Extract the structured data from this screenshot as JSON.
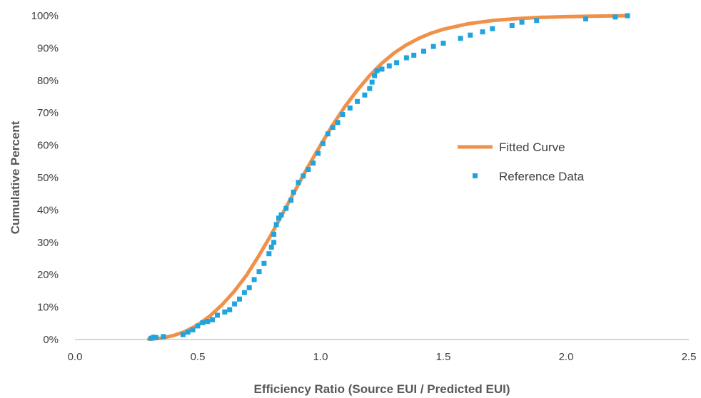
{
  "chart_data": {
    "type": "scatter",
    "xlabel": "Efficiency Ratio (Source EUI / Predicted EUI)",
    "ylabel": "Cumulative Percent",
    "xlim": [
      0,
      2.5
    ],
    "ylim": [
      0,
      100
    ],
    "x_ticks": [
      "0.0",
      "0.5",
      "1.0",
      "1.5",
      "2.0",
      "2.5"
    ],
    "y_ticks": [
      "0%",
      "10%",
      "20%",
      "30%",
      "40%",
      "50%",
      "60%",
      "70%",
      "80%",
      "90%",
      "100%"
    ],
    "legend": {
      "position": "right-center"
    },
    "colors": {
      "fitted": "#F0914A",
      "reference": "#1EA4DE"
    },
    "series": [
      {
        "name": "Fitted Curve",
        "style": "line",
        "x": [
          0.3,
          0.35,
          0.4,
          0.45,
          0.5,
          0.55,
          0.6,
          0.65,
          0.7,
          0.75,
          0.8,
          0.85,
          0.9,
          0.95,
          1.0,
          1.05,
          1.1,
          1.15,
          1.2,
          1.25,
          1.3,
          1.35,
          1.4,
          1.45,
          1.5,
          1.6,
          1.7,
          1.8,
          1.9,
          2.0,
          2.1,
          2.2,
          2.25
        ],
        "y": [
          0.1,
          0.4,
          1.2,
          2.5,
          4.5,
          7.3,
          10.8,
          15.0,
          20.0,
          26.0,
          32.5,
          39.5,
          46.5,
          53.5,
          60.0,
          66.3,
          72.0,
          77.0,
          81.5,
          85.3,
          88.5,
          91.0,
          93.0,
          94.6,
          95.8,
          97.5,
          98.5,
          99.1,
          99.5,
          99.7,
          99.85,
          99.95,
          100
        ]
      },
      {
        "name": "Reference Data",
        "style": "markers",
        "x": [
          0.31,
          0.32,
          0.33,
          0.36,
          0.44,
          0.46,
          0.48,
          0.5,
          0.52,
          0.54,
          0.56,
          0.58,
          0.61,
          0.63,
          0.65,
          0.67,
          0.69,
          0.71,
          0.73,
          0.75,
          0.77,
          0.79,
          0.8,
          0.81,
          0.81,
          0.82,
          0.83,
          0.84,
          0.86,
          0.88,
          0.89,
          0.91,
          0.93,
          0.95,
          0.97,
          0.99,
          1.01,
          1.03,
          1.05,
          1.07,
          1.09,
          1.12,
          1.15,
          1.18,
          1.2,
          1.21,
          1.22,
          1.23,
          1.25,
          1.28,
          1.31,
          1.35,
          1.38,
          1.42,
          1.46,
          1.5,
          1.57,
          1.61,
          1.66,
          1.7,
          1.78,
          1.82,
          1.88,
          2.08,
          2.2,
          2.25
        ],
        "y": [
          0.4,
          0.7,
          0.6,
          0.9,
          1.5,
          2.3,
          3.0,
          4.2,
          5.2,
          5.6,
          6.1,
          7.5,
          8.5,
          9.2,
          11.0,
          12.5,
          14.5,
          16.0,
          18.5,
          21.0,
          23.5,
          26.5,
          28.5,
          30.0,
          32.5,
          35.5,
          37.5,
          38.5,
          40.5,
          43.0,
          45.5,
          48.5,
          50.5,
          52.5,
          54.5,
          57.5,
          60.5,
          63.5,
          65.5,
          67.0,
          69.5,
          71.5,
          73.5,
          75.5,
          77.5,
          79.5,
          81.5,
          83.0,
          83.5,
          84.5,
          85.5,
          87.0,
          87.8,
          89.0,
          90.5,
          91.5,
          93.0,
          94.0,
          95.0,
          96.0,
          97.0,
          98.0,
          98.5,
          99.0,
          99.6,
          100
        ]
      }
    ]
  }
}
